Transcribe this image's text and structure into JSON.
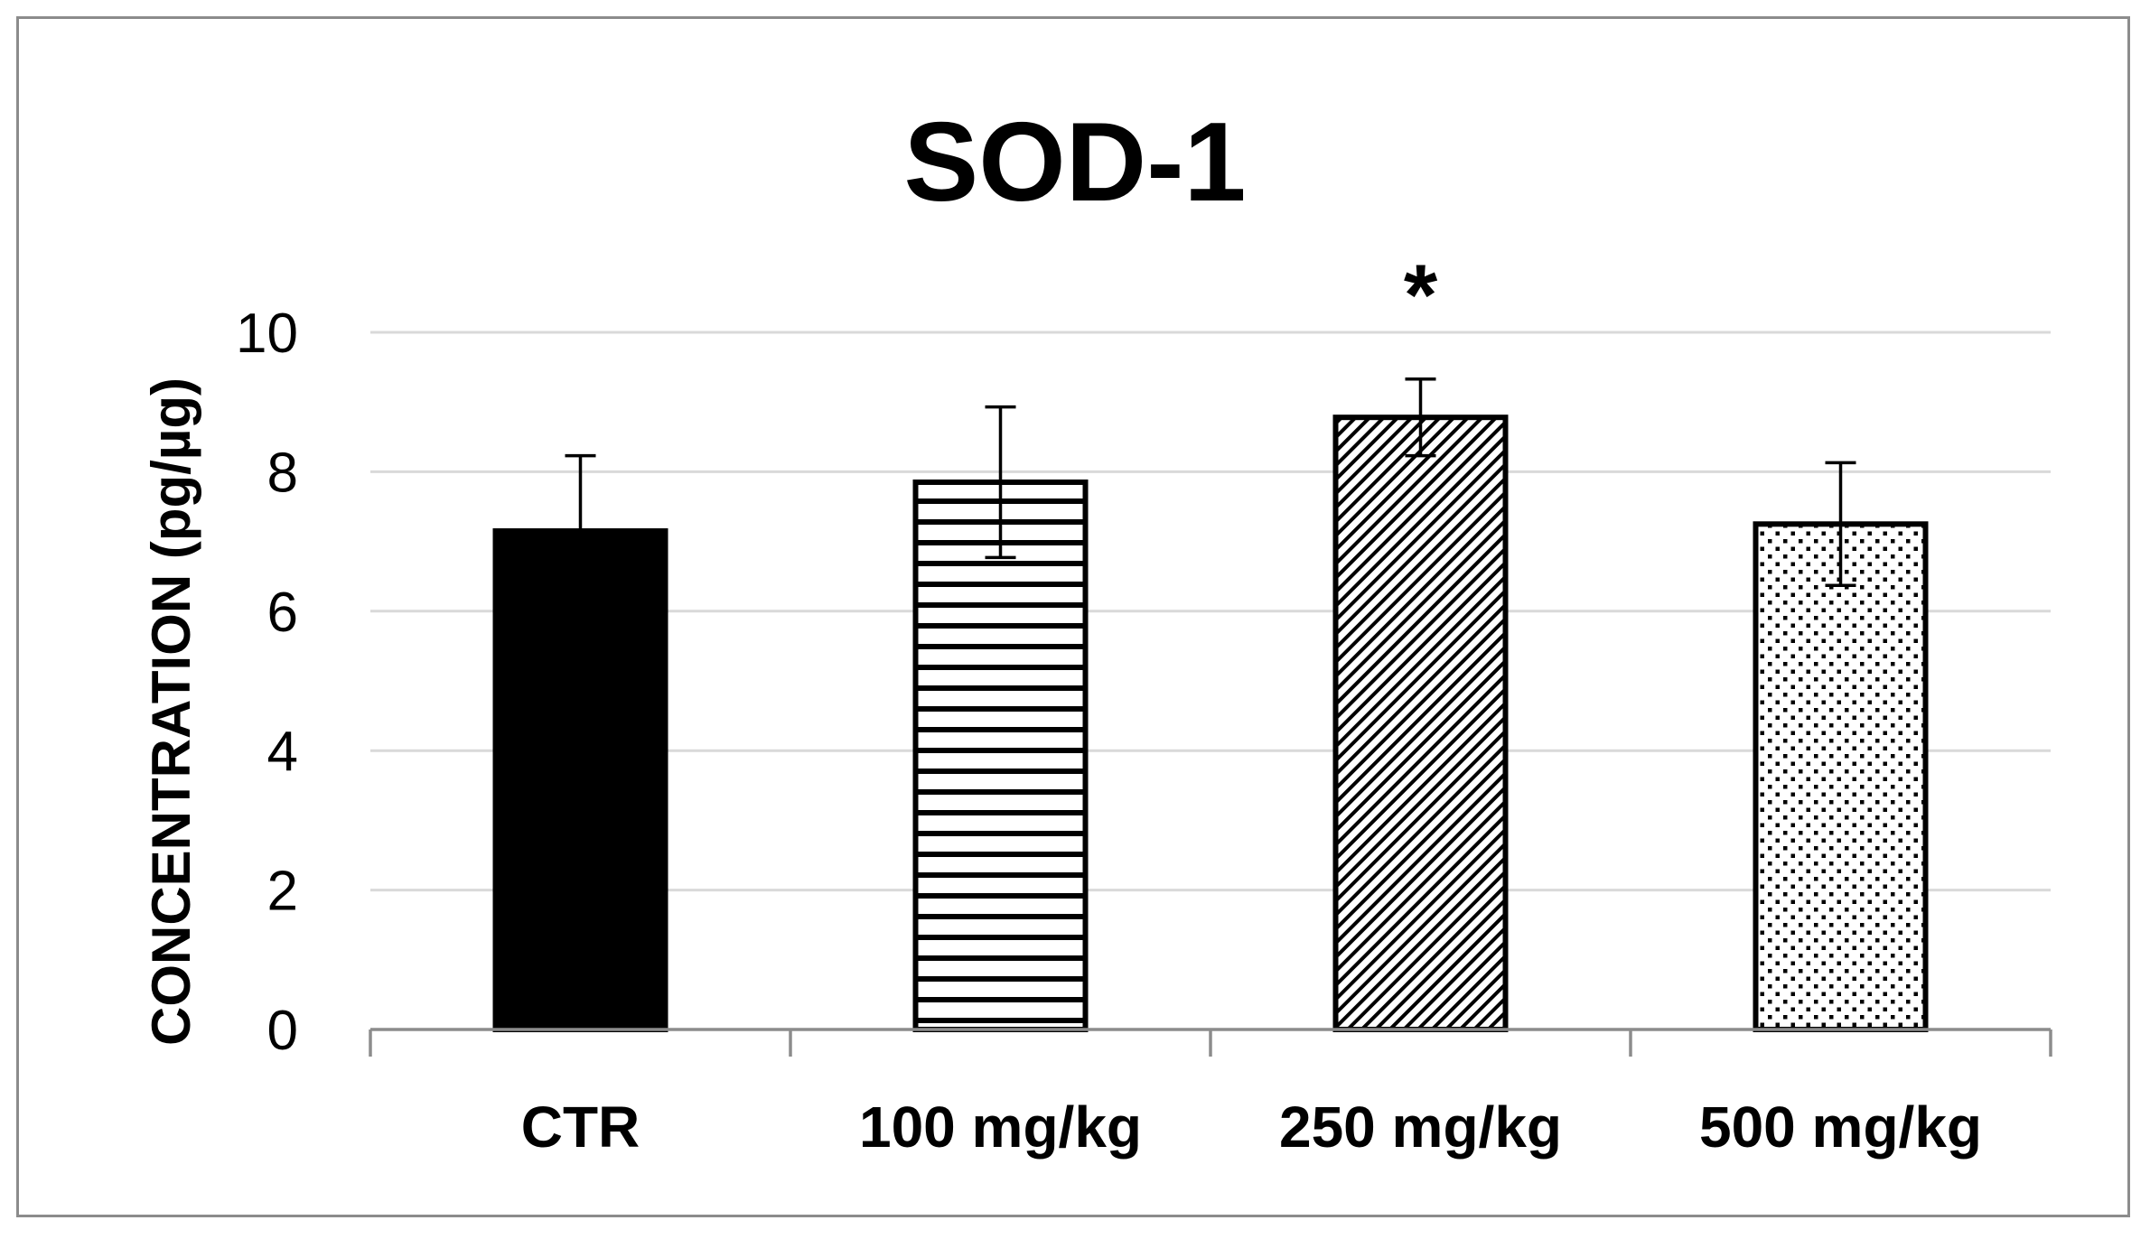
{
  "chart_data": {
    "type": "bar",
    "title": "SOD-1",
    "xlabel": "",
    "ylabel": "CONCENTRATION (pg/µg)",
    "ylim": [
      0,
      10
    ],
    "yticks": [
      0,
      2,
      4,
      6,
      8,
      10
    ],
    "grid": true,
    "categories": [
      "CTR",
      "100 mg/kg",
      "250 mg/kg",
      "500 mg/kg"
    ],
    "values": [
      7.15,
      7.85,
      8.78,
      7.25
    ],
    "errors": [
      1.08,
      1.08,
      0.55,
      0.88
    ],
    "fills": [
      "solid",
      "horizontal-lines",
      "diagonal-lines",
      "dots"
    ],
    "annotations": [
      {
        "category": "250 mg/kg",
        "text": "*"
      }
    ]
  },
  "colors": {
    "bar_fill_solid": "#000000",
    "bar_outline": "#000000",
    "gridline": "#d9d9d9",
    "axis": "#8c8c8c",
    "frame": "#8c8c8c",
    "background": "#ffffff"
  }
}
